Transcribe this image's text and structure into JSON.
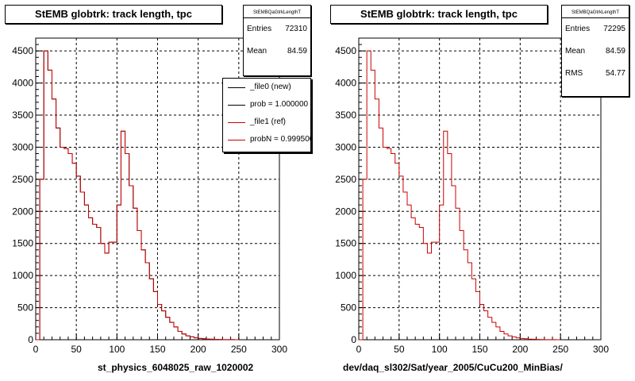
{
  "chart_data": [
    {
      "type": "bar",
      "title": "StEMB globtrk: track length, tpc",
      "xlabel": "st_physics_6048025_raw_1020002",
      "xlim": [
        0,
        300
      ],
      "ylim": [
        0,
        4700
      ],
      "xticks": [
        0,
        50,
        100,
        150,
        200,
        250,
        300
      ],
      "yticks": [
        0,
        500,
        1000,
        1500,
        2000,
        2500,
        3000,
        3500,
        4000,
        4500
      ],
      "grid": true,
      "bin_width": 5,
      "bins_start": 0,
      "values": [
        0,
        2500,
        4500,
        4200,
        3750,
        3300,
        3000,
        2980,
        2900,
        2750,
        2550,
        2300,
        2100,
        1900,
        1800,
        1750,
        1500,
        1350,
        1520,
        1520,
        2100,
        3250,
        2900,
        2400,
        2050,
        1700,
        1400,
        1200,
        950,
        750,
        550,
        450,
        350,
        270,
        200,
        130,
        90,
        60,
        45,
        30,
        20,
        15,
        10,
        8,
        5,
        3,
        2,
        1,
        1,
        0
      ],
      "stats": {
        "header": "StEMBQaGtrkLengthT",
        "entries_label": "Entries",
        "entries": "72310",
        "mean_label": "Mean",
        "mean": "84.59"
      },
      "legend": {
        "placement": "top-right",
        "entries": [
          {
            "label": "_file0 (new)",
            "color": "#000000"
          },
          {
            "label": "prob = 1.000000",
            "color": "#000000"
          },
          {
            "label": "_file1 (ref)",
            "color": "#cc0000"
          },
          {
            "label": "probN = 0.999500",
            "color": "#cc0000"
          }
        ]
      },
      "series_colors": {
        "new": "#000000",
        "ref": "#cc0000"
      }
    },
    {
      "type": "bar",
      "title": "StEMB globtrk: track length, tpc",
      "xlabel": "dev/daq_sl302/Sat/year_2005/CuCu200_MinBias/",
      "xlim": [
        0,
        300
      ],
      "ylim": [
        0,
        4700
      ],
      "xticks": [
        0,
        50,
        100,
        150,
        200,
        250,
        300
      ],
      "yticks": [
        0,
        500,
        1000,
        1500,
        2000,
        2500,
        3000,
        3500,
        4000,
        4500
      ],
      "grid": true,
      "bin_width": 5,
      "bins_start": 0,
      "values": [
        0,
        2500,
        4500,
        4200,
        3750,
        3300,
        3000,
        2980,
        2900,
        2750,
        2550,
        2300,
        2100,
        1900,
        1800,
        1750,
        1500,
        1350,
        1520,
        1520,
        2100,
        3250,
        2900,
        2400,
        2050,
        1700,
        1400,
        1200,
        950,
        750,
        550,
        450,
        350,
        270,
        200,
        130,
        90,
        60,
        45,
        30,
        20,
        15,
        10,
        8,
        5,
        3,
        2,
        1,
        1,
        0
      ],
      "stats": {
        "header": "StEMBQaGtrkLengthT",
        "entries_label": "Entries",
        "entries": "72295",
        "mean_label": "Mean",
        "mean": "84.59",
        "rms_label": "RMS",
        "rms": "54.77"
      },
      "series_colors": {
        "ref": "#cc0000"
      }
    }
  ]
}
